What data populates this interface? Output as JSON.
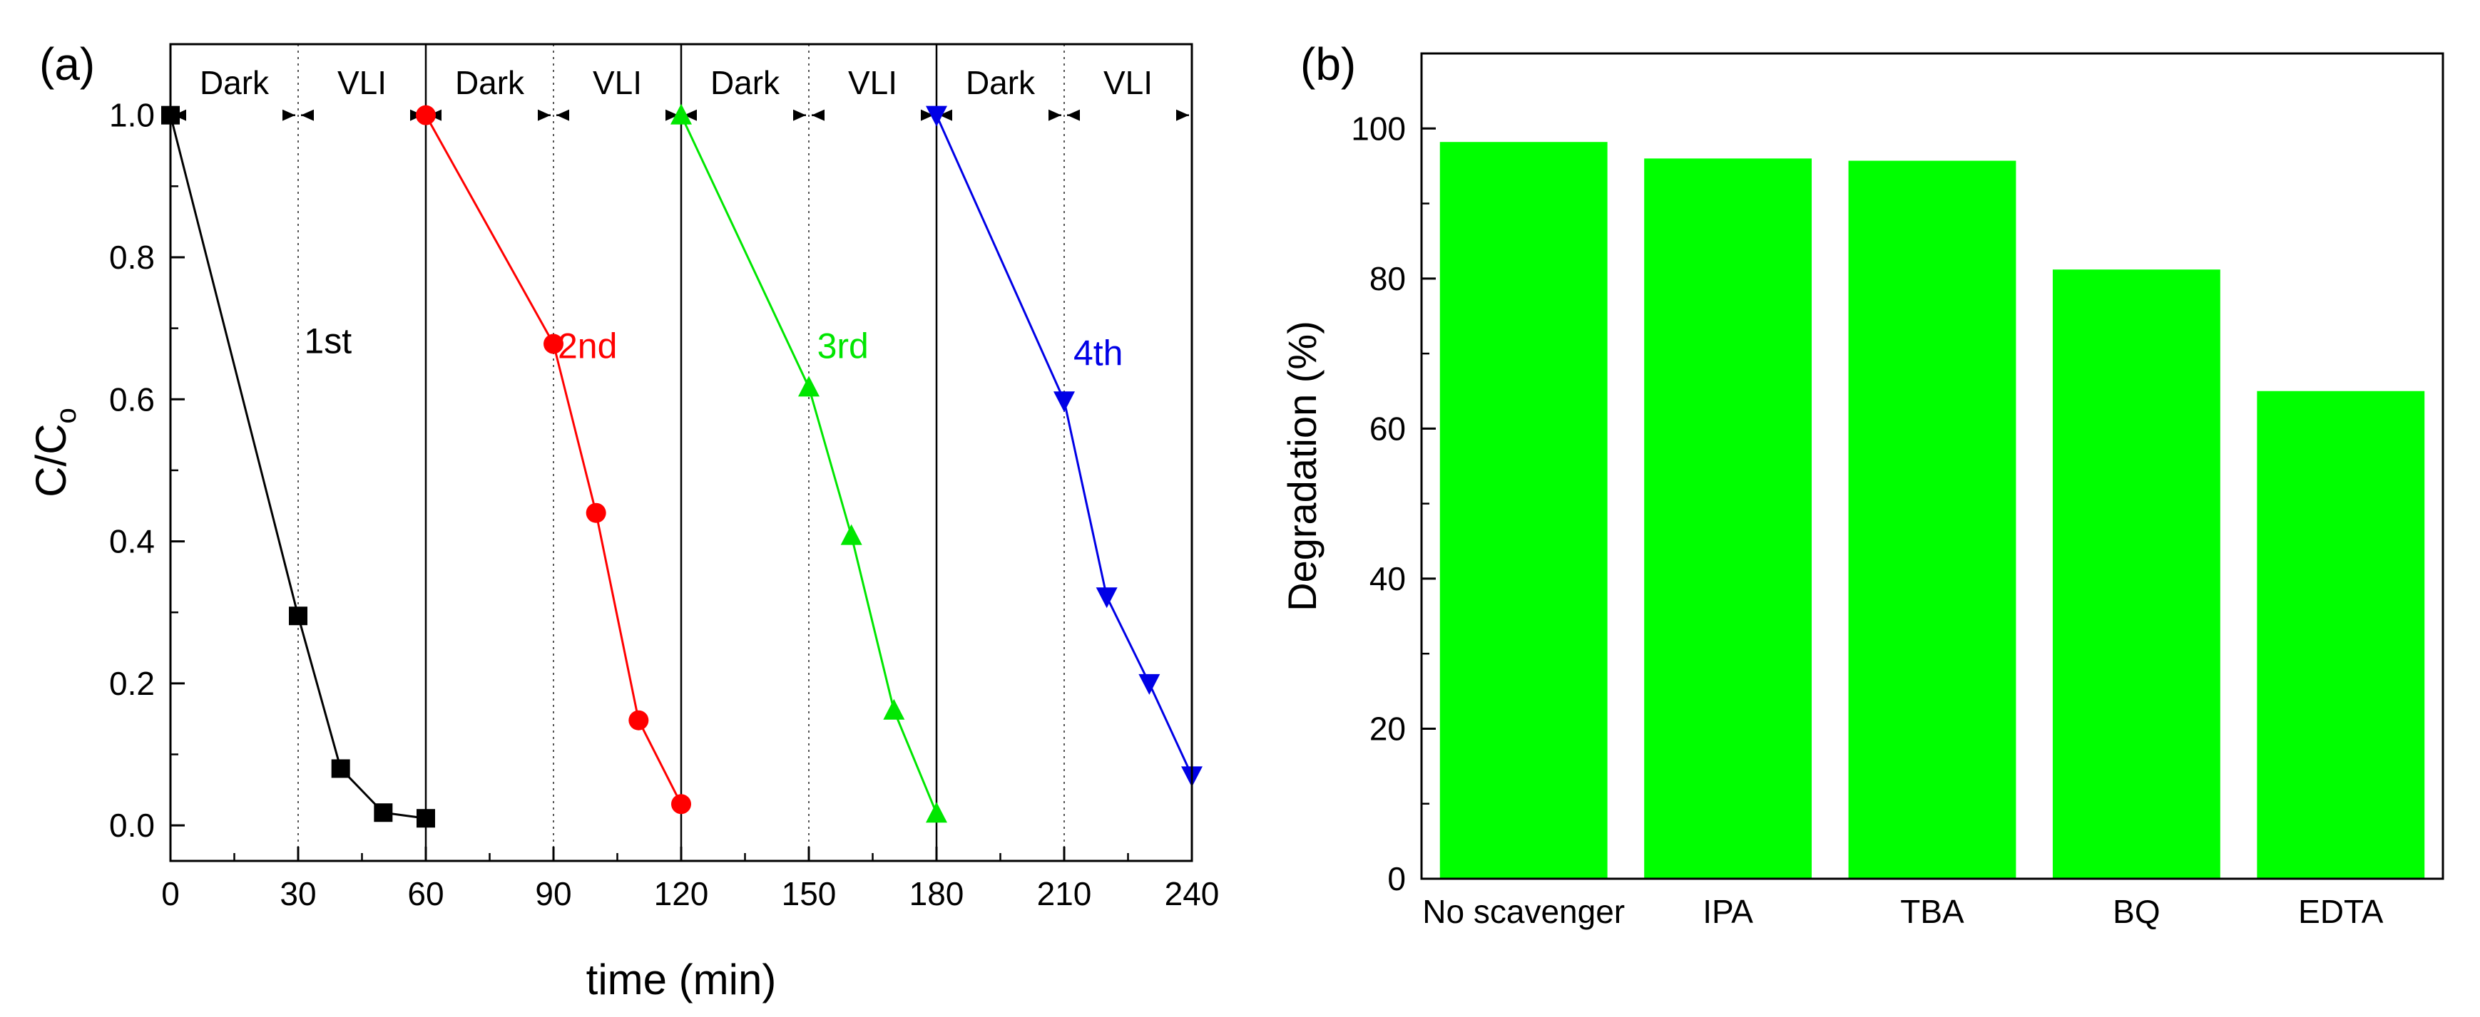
{
  "chart_data": [
    {
      "type": "line",
      "panel_label": "(a)",
      "xlabel": "time (min)",
      "ylabel_main": "C/C",
      "ylabel_sub": "o",
      "xlim": [
        0,
        240
      ],
      "ylim": [
        -0.05,
        1.1
      ],
      "xticks": [
        0,
        30,
        60,
        90,
        120,
        150,
        180,
        210,
        240
      ],
      "yticks": [
        0.0,
        0.2,
        0.4,
        0.6,
        0.8,
        1.0
      ],
      "ytick_labels": [
        "0.0",
        "0.2",
        "0.4",
        "0.6",
        "0.8",
        "1.0"
      ],
      "xtick_labels": [
        "0",
        "30",
        "60",
        "90",
        "120",
        "150",
        "180",
        "210",
        "240"
      ],
      "minor_xticks": [
        15,
        45,
        75,
        105,
        135,
        165,
        195,
        225
      ],
      "cycle_dividers": [
        60,
        120,
        180
      ],
      "dark_light_boundaries": [
        30,
        90,
        150,
        210
      ],
      "segments": [
        {
          "from": 0,
          "to": 30,
          "label": "Dark"
        },
        {
          "from": 30,
          "to": 60,
          "label": "VLI"
        },
        {
          "from": 60,
          "to": 90,
          "label": "Dark"
        },
        {
          "from": 90,
          "to": 120,
          "label": "VLI"
        },
        {
          "from": 120,
          "to": 150,
          "label": "Dark"
        },
        {
          "from": 150,
          "to": 180,
          "label": "VLI"
        },
        {
          "from": 180,
          "to": 210,
          "label": "Dark"
        },
        {
          "from": 210,
          "to": 240,
          "label": "VLI"
        }
      ],
      "segment_label_y": 1.03,
      "series": [
        {
          "name": "1st",
          "color": "#000000",
          "marker": "square",
          "x": [
            0,
            30,
            40,
            50,
            60
          ],
          "y": [
            1.0,
            0.295,
            0.08,
            0.018,
            0.01
          ],
          "label_x": 37,
          "label_y": 0.665
        },
        {
          "name": "2nd",
          "color": "#ff0000",
          "marker": "circle",
          "x": [
            60,
            90,
            100,
            110,
            120
          ],
          "y": [
            1.0,
            0.678,
            0.44,
            0.148,
            0.03
          ],
          "label_x": 98,
          "label_y": 0.658
        },
        {
          "name": "3rd",
          "color": "#00e600",
          "marker": "triangle-up",
          "x": [
            120,
            150,
            160,
            170,
            180
          ],
          "y": [
            1.0,
            0.617,
            0.408,
            0.162,
            0.017
          ],
          "label_x": 158,
          "label_y": 0.658
        },
        {
          "name": "4th",
          "color": "#0000e6",
          "marker": "triangle-down",
          "x": [
            180,
            210,
            220,
            230,
            240
          ],
          "y": [
            1.0,
            0.598,
            0.322,
            0.2,
            0.07
          ],
          "label_x": 218,
          "label_y": 0.648
        }
      ]
    },
    {
      "type": "bar",
      "panel_label": "(b)",
      "categories": [
        "No scavenger",
        "IPA",
        "TBA",
        "BQ",
        "EDTA"
      ],
      "values": [
        98.2,
        96.0,
        95.7,
        81.2,
        65.0
      ],
      "ylabel": "Degradation (%)",
      "xlabel": "",
      "ylim": [
        0,
        110
      ],
      "yticks": [
        0,
        20,
        40,
        60,
        80,
        100
      ],
      "ytick_labels": [
        "0",
        "20",
        "40",
        "60",
        "80",
        "100"
      ],
      "bar_color": "#00ff00"
    }
  ]
}
